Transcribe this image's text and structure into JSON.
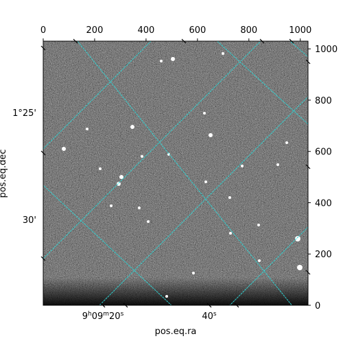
{
  "chart_data": {
    "type": "image",
    "xlabel": "pos.eq.ra",
    "ylabel": "pos.eq.dec",
    "pixel_axes": {
      "x_range": [
        0,
        1030
      ],
      "y_range": [
        0,
        1030
      ],
      "x_ticks": [
        0,
        200,
        400,
        600,
        800,
        1000
      ],
      "y_ticks": [
        0,
        200,
        400,
        600,
        800,
        1000
      ],
      "x_position": "top",
      "y_position": "right"
    },
    "world_ticks": {
      "ra": [
        {
          "hms": [
            "9",
            "h",
            "09",
            "m",
            "20",
            "s"
          ]
        },
        {
          "hms": [
            "",
            "",
            "",
            "",
            "40",
            "s"
          ]
        }
      ],
      "dec": [
        "1°25'",
        "30'"
      ]
    },
    "grid": {
      "visible": true,
      "color": "#2fd4d4"
    },
    "colormap": "gray"
  }
}
